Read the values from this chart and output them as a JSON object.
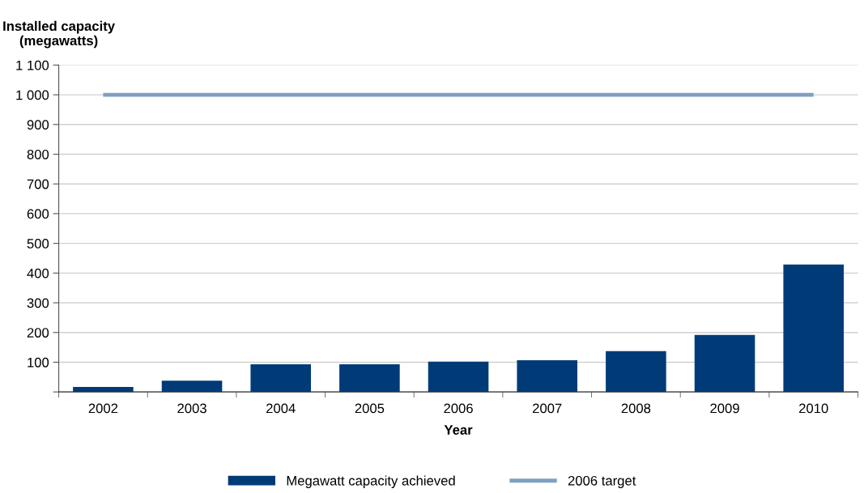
{
  "chart_data": {
    "type": "bar",
    "ylabel": "Installed capacity\n(megawatts)",
    "xlabel": "Year",
    "categories": [
      "2002",
      "2003",
      "2004",
      "2005",
      "2006",
      "2007",
      "2008",
      "2009",
      "2010"
    ],
    "series": [
      {
        "name": "Megawatt capacity achieved",
        "color": "#003b78",
        "values": [
          17,
          38,
          93,
          93,
          102,
          107,
          137,
          192,
          429
        ]
      },
      {
        "name": "2006 target",
        "color": "#7f9fc0",
        "type": "line",
        "values": [
          1000,
          1000,
          1000,
          1000,
          1000,
          1000,
          1000,
          1000,
          1000
        ]
      }
    ],
    "ylim": [
      0,
      1100
    ],
    "yticks": [
      {
        "value": 0,
        "label": null
      },
      100,
      200,
      300,
      400,
      500,
      600,
      700,
      800,
      900,
      {
        "value": 1000,
        "label": "1 000"
      },
      {
        "value": 1100,
        "label": "1 100"
      }
    ],
    "grid": "y",
    "legend": "bottom"
  }
}
